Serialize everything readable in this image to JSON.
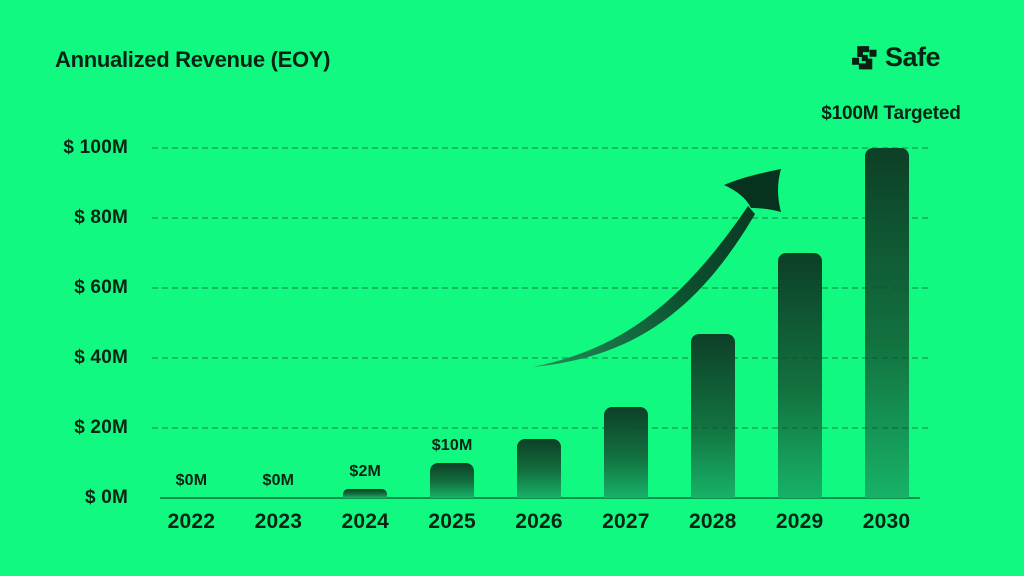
{
  "header": {
    "title": "Annualized Revenue (EOY)",
    "brand": "Safe"
  },
  "colors": {
    "background": "#12F981",
    "ink": "#082415",
    "bar_top": "#0D3F27",
    "bar_bottom": "#17B268",
    "gridline": "rgba(8,80,46,0.35)",
    "axis_line": "rgba(8,60,36,0.55)",
    "arrow_tail": "#1F8E58",
    "arrow_head": "#07331E"
  },
  "chart_data": {
    "type": "bar",
    "title": "Annualized Revenue (EOY)",
    "categories": [
      "2022",
      "2023",
      "2024",
      "2025",
      "2026",
      "2027",
      "2028",
      "2029",
      "2030"
    ],
    "values": [
      0,
      0,
      2,
      10,
      17,
      26,
      47,
      70,
      100
    ],
    "bar_value_labels": [
      "$0M",
      "$0M",
      "$2M",
      "$10M",
      "",
      "",
      "",
      "",
      ""
    ],
    "y_ticks": [
      {
        "label": "$ 100M",
        "value": 100
      },
      {
        "label": "$ 80M",
        "value": 80
      },
      {
        "label": "$ 60M",
        "value": 60
      },
      {
        "label": "$ 40M",
        "value": 40
      },
      {
        "label": "$ 20M",
        "value": 20
      },
      {
        "label": "$ 0M",
        "value": 0
      }
    ],
    "ylim": [
      0,
      100
    ],
    "xlabel": "",
    "ylabel": "",
    "grid": "horizontal-dashed",
    "legend": "none",
    "annotation": "$100M Targeted",
    "decoration": "curved growth arrow pointing up-right between 2026 and 2029 columns"
  }
}
